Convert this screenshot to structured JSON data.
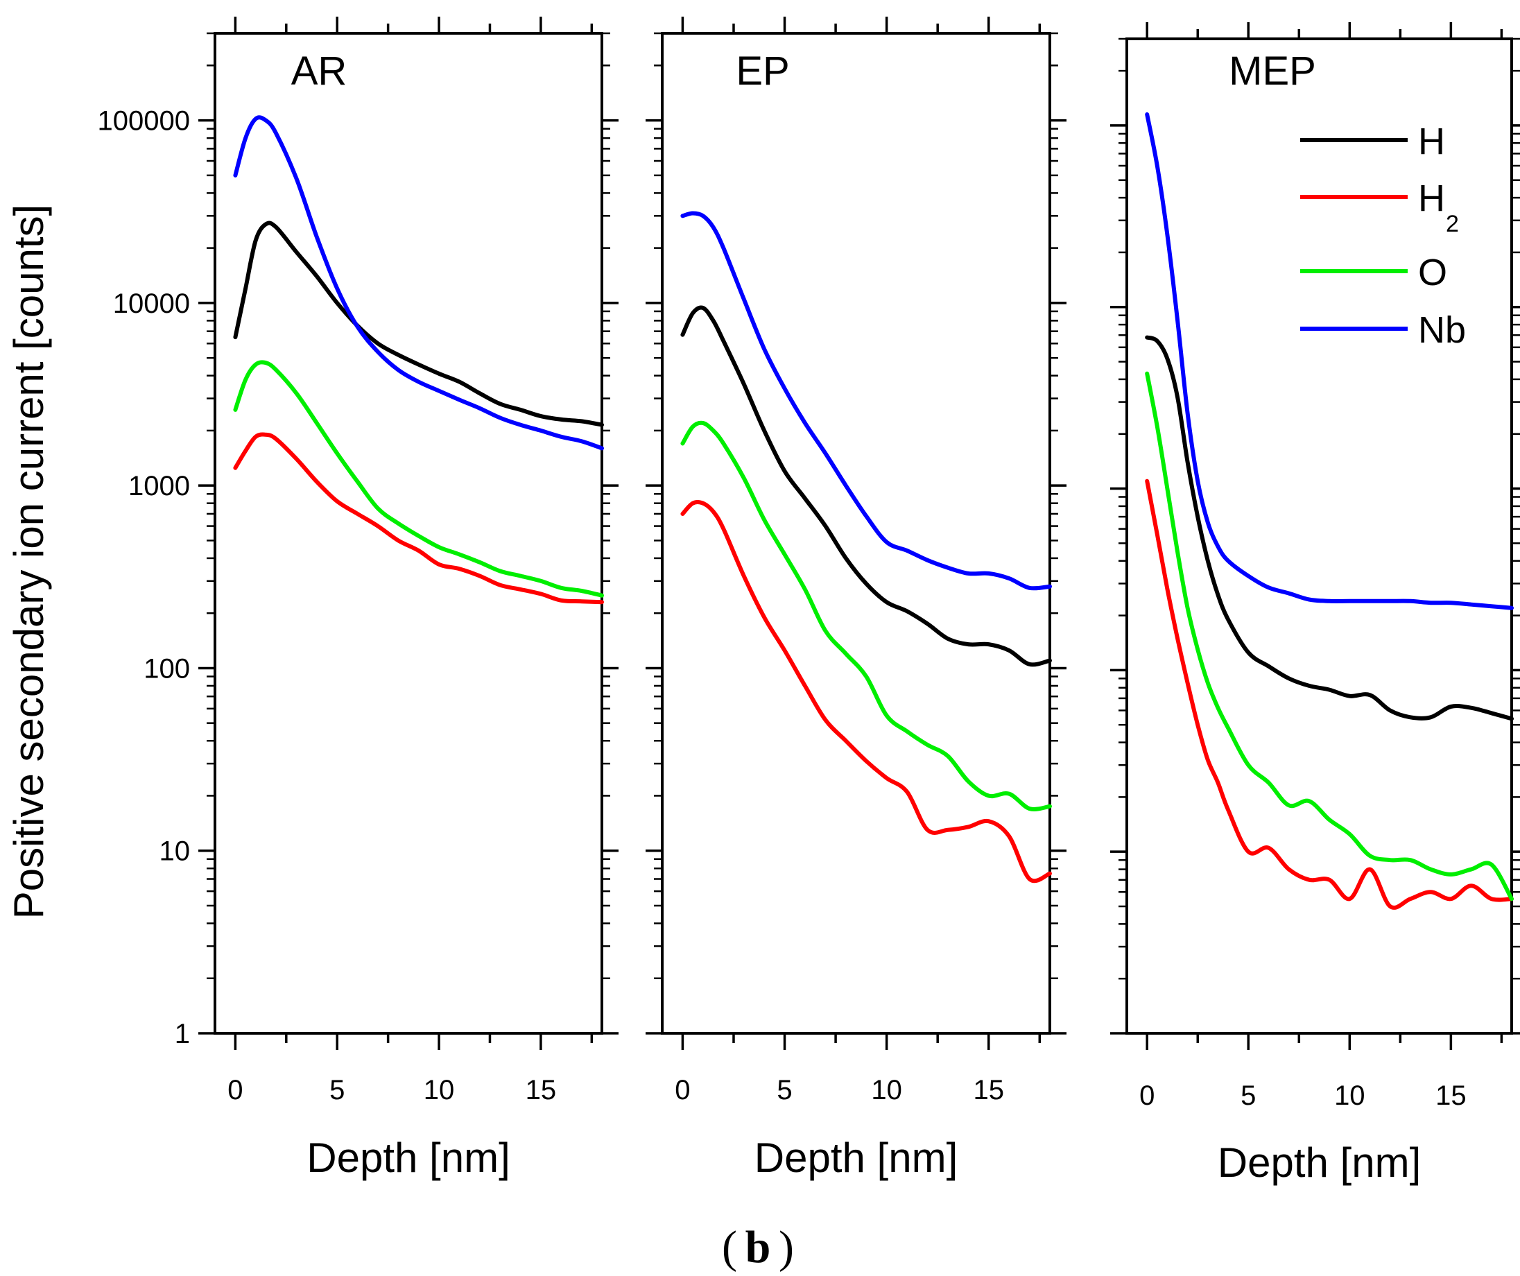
{
  "chart_data": [
    {
      "type": "line",
      "title": "AR",
      "xlabel": "Depth [nm]",
      "ylabel": "Positive secondary ion current [counts]",
      "yscale": "log",
      "xlim": [
        -1,
        18
      ],
      "ylim": [
        1,
        300000
      ],
      "xticks": [
        0,
        5,
        10,
        15
      ],
      "yticks": [
        1,
        10,
        100,
        1000,
        10000,
        100000
      ],
      "x": [
        0,
        0.5,
        1,
        1.5,
        2,
        3,
        4,
        5,
        6,
        7,
        8,
        9,
        10,
        11,
        12,
        13,
        14,
        15,
        16,
        17,
        18
      ],
      "series": [
        {
          "name": "H",
          "color": "#000000",
          "values": [
            6500,
            12000,
            22000,
            27000,
            26000,
            19000,
            14000,
            10000,
            7500,
            6000,
            5200,
            4600,
            4100,
            3700,
            3200,
            2800,
            2600,
            2400,
            2300,
            2250,
            2150
          ]
        },
        {
          "name": "H2",
          "color": "#ff0000",
          "values": [
            1250,
            1550,
            1850,
            1900,
            1800,
            1400,
            1050,
            820,
            700,
            600,
            500,
            440,
            370,
            350,
            320,
            285,
            270,
            255,
            235,
            232,
            230
          ]
        },
        {
          "name": "O",
          "color": "#00ee00",
          "values": [
            2600,
            3800,
            4600,
            4700,
            4300,
            3200,
            2200,
            1500,
            1050,
            750,
            620,
            530,
            460,
            420,
            380,
            340,
            320,
            300,
            275,
            265,
            250
          ]
        },
        {
          "name": "Nb",
          "color": "#0000ff",
          "values": [
            50000,
            80000,
            102000,
            100000,
            85000,
            48000,
            23000,
            12000,
            7400,
            5400,
            4300,
            3700,
            3300,
            2950,
            2650,
            2350,
            2150,
            2000,
            1850,
            1750,
            1600
          ]
        }
      ]
    },
    {
      "type": "line",
      "title": "EP",
      "xlabel": "Depth [nm]",
      "yscale": "log",
      "xlim": [
        -1,
        18
      ],
      "ylim": [
        1,
        300000
      ],
      "xticks": [
        0,
        5,
        10,
        15
      ],
      "x": [
        0,
        0.5,
        1,
        1.5,
        2,
        3,
        4,
        5,
        6,
        7,
        8,
        9,
        10,
        11,
        12,
        13,
        14,
        15,
        16,
        17,
        18
      ],
      "series": [
        {
          "name": "H",
          "color": "#000000",
          "values": [
            6700,
            8800,
            9400,
            8000,
            6200,
            3600,
            2000,
            1200,
            850,
            600,
            400,
            290,
            230,
            205,
            175,
            145,
            135,
            135,
            125,
            105,
            110
          ]
        },
        {
          "name": "H2",
          "color": "#ff0000",
          "values": [
            700,
            800,
            800,
            720,
            580,
            320,
            190,
            125,
            80,
            52,
            40,
            31,
            25,
            21,
            13,
            13,
            13.5,
            14.5,
            12,
            7,
            7.5
          ]
        },
        {
          "name": "O",
          "color": "#00ee00",
          "values": [
            1700,
            2100,
            2200,
            2000,
            1700,
            1100,
            650,
            420,
            270,
            160,
            120,
            90,
            55,
            45,
            38,
            33,
            24,
            20,
            20.5,
            17,
            17.5
          ]
        },
        {
          "name": "Nb",
          "color": "#0000ff",
          "values": [
            30000,
            31000,
            30000,
            26000,
            20000,
            10500,
            5600,
            3400,
            2200,
            1500,
            1000,
            680,
            490,
            440,
            390,
            355,
            330,
            330,
            310,
            275,
            280
          ]
        }
      ]
    },
    {
      "type": "line",
      "title": "MEP",
      "xlabel": "Depth [nm]",
      "yscale": "log",
      "xlim": [
        -1,
        18
      ],
      "ylim": [
        1,
        300000
      ],
      "xticks": [
        0,
        5,
        10,
        15
      ],
      "legend": [
        "H",
        "H2",
        "O",
        "Nb"
      ],
      "legend_position": "top-right",
      "x": [
        0,
        0.5,
        1,
        1.5,
        2,
        2.5,
        3,
        3.5,
        4,
        5,
        6,
        7,
        8,
        9,
        10,
        11,
        12,
        13,
        14,
        15,
        16,
        17,
        18
      ],
      "series": [
        {
          "name": "H",
          "color": "#000000",
          "values": [
            6800,
            6500,
            5200,
            3200,
            1400,
            700,
            400,
            260,
            190,
            125,
            105,
            90,
            82,
            78,
            72,
            73,
            60,
            55,
            55,
            63,
            62,
            58,
            54
          ]
        },
        {
          "name": "H2",
          "color": "#ff0000",
          "values": [
            1100,
            560,
            280,
            150,
            85,
            50,
            32,
            24,
            17,
            10,
            10.5,
            8,
            7,
            7,
            5.5,
            8,
            5,
            5.5,
            6,
            5.5,
            6.5,
            5.5,
            5.5
          ]
        },
        {
          "name": "O",
          "color": "#00ee00",
          "values": [
            4300,
            2200,
            1000,
            450,
            220,
            130,
            85,
            62,
            48,
            30,
            24,
            18,
            19,
            15,
            12.5,
            9.5,
            9,
            9,
            8,
            7.5,
            8,
            8.5,
            5.5
          ]
        },
        {
          "name": "Nb",
          "color": "#0000ff",
          "values": [
            115000,
            60000,
            25000,
            8500,
            2600,
            1100,
            650,
            480,
            400,
            330,
            285,
            265,
            245,
            240,
            240,
            240,
            240,
            240,
            235,
            235,
            230,
            225,
            220
          ]
        }
      ]
    }
  ],
  "figure": {
    "y_tick_labels": [
      "1",
      "10",
      "100",
      "1000",
      "10000",
      "100000"
    ],
    "x_tick_labels": [
      "0",
      "5",
      "10",
      "15"
    ],
    "legend": {
      "h_label": "H",
      "h2_label": "H",
      "h2_subscript": "2",
      "o_label": "O",
      "nb_label": "Nb"
    },
    "caption_open": "(",
    "caption_letter": "b",
    "caption_close": ")"
  }
}
